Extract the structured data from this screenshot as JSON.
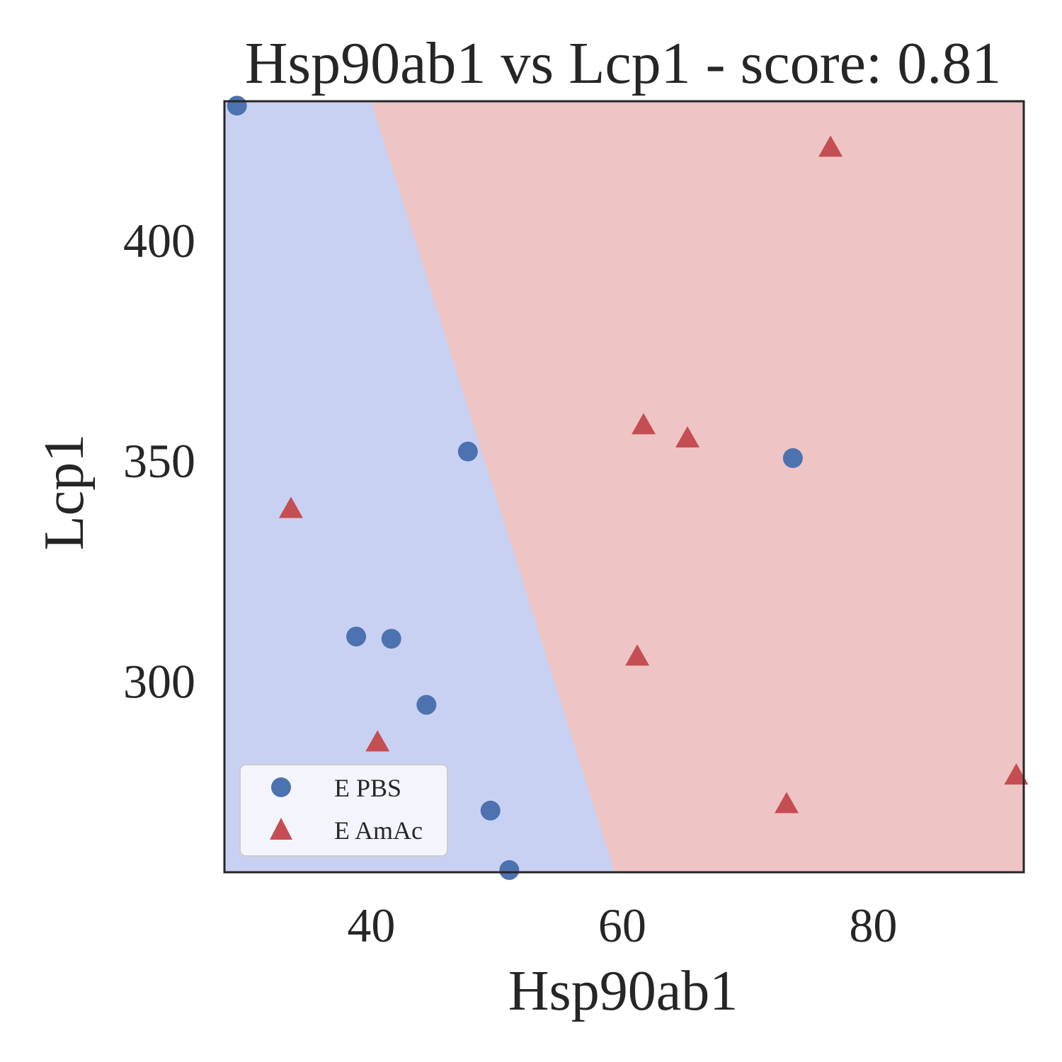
{
  "chart_data": {
    "type": "scatter",
    "title": "Hsp90ab1 vs Lcp1 - score: 0.81",
    "xlabel": "Hsp90ab1",
    "ylabel": "Lcp1",
    "xlim": [
      28.3,
      92.0
    ],
    "ylim": [
      256.5,
      431.5
    ],
    "xticks": [
      40,
      60,
      80
    ],
    "yticks": [
      300,
      350,
      400
    ],
    "grid": false,
    "legend_position": "lower-left",
    "decision_boundary": {
      "points": [
        [
          40.0,
          431.5
        ],
        [
          59.4,
          256.5
        ]
      ],
      "left_region": "E PBS",
      "right_region": "E AmAc"
    },
    "series": [
      {
        "name": "E PBS",
        "marker": "circle",
        "color": "#4c72b0",
        "region_color": "#c9d1f2",
        "points": [
          [
            29.3,
            430.5
          ],
          [
            47.7,
            352.0
          ],
          [
            73.6,
            350.5
          ],
          [
            38.8,
            310.0
          ],
          [
            41.6,
            309.5
          ],
          [
            44.4,
            294.5
          ],
          [
            49.5,
            270.5
          ],
          [
            51.0,
            257.0
          ]
        ]
      },
      {
        "name": "E AmAc",
        "marker": "triangle",
        "color": "#c44e52",
        "region_color": "#efc4c4",
        "points": [
          [
            76.6,
            421.0
          ],
          [
            61.7,
            358.0
          ],
          [
            65.2,
            355.0
          ],
          [
            33.6,
            339.0
          ],
          [
            61.2,
            305.5
          ],
          [
            40.5,
            286.0
          ],
          [
            73.1,
            272.0
          ],
          [
            91.4,
            278.5
          ]
        ]
      }
    ]
  },
  "colors": {
    "text": "#262626",
    "axes_edge": "#262626",
    "legend_bg": "#f4f5fc",
    "legend_edge": "#cccccc"
  }
}
